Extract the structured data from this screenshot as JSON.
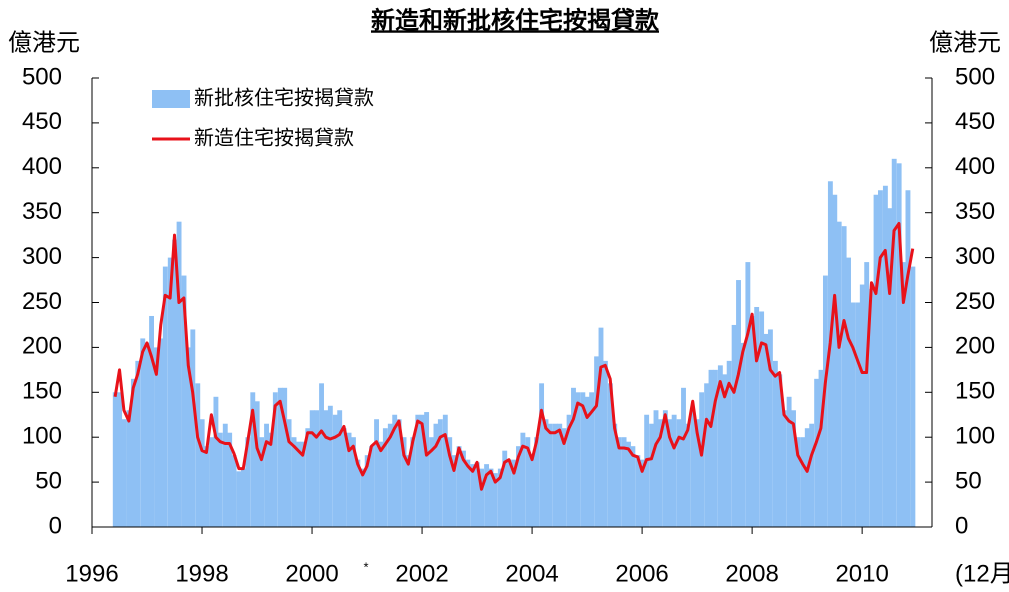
{
  "chart_data": {
    "type": "bar",
    "title": "新造和新批核住宅按揭貸款",
    "y_label": "億港元",
    "y2_label": "億港元",
    "x_unit_label": "(12月)",
    "annotation": "*",
    "xlim": [
      1996,
      2011.27
    ],
    "xticks": [
      1996,
      1998,
      2000,
      2002,
      2004,
      2006,
      2008,
      2010
    ],
    "ylim": [
      0,
      500
    ],
    "yticks": [
      0,
      50,
      100,
      150,
      200,
      250,
      300,
      350,
      400,
      450,
      500
    ],
    "y2lim": [
      0,
      500
    ],
    "y2ticks": [
      0,
      50,
      100,
      150,
      200,
      250,
      300,
      350,
      400,
      450,
      500
    ],
    "legend": "upper-left",
    "x": [
      1996.42,
      1996.5,
      1996.58,
      1996.67,
      1996.75,
      1996.83,
      1996.92,
      1997,
      1997.08,
      1997.17,
      1997.25,
      1997.33,
      1997.42,
      1997.5,
      1997.58,
      1997.67,
      1997.75,
      1997.83,
      1997.92,
      1998,
      1998.08,
      1998.17,
      1998.25,
      1998.33,
      1998.42,
      1998.5,
      1998.58,
      1998.67,
      1998.75,
      1998.83,
      1998.92,
      1999,
      1999.08,
      1999.17,
      1999.25,
      1999.33,
      1999.42,
      1999.5,
      1999.58,
      1999.67,
      1999.75,
      1999.83,
      1999.92,
      2000,
      2000.08,
      2000.17,
      2000.25,
      2000.33,
      2000.42,
      2000.5,
      2000.58,
      2000.67,
      2000.75,
      2000.83,
      2000.92,
      2001,
      2001.08,
      2001.17,
      2001.25,
      2001.33,
      2001.42,
      2001.5,
      2001.58,
      2001.67,
      2001.75,
      2001.83,
      2001.92,
      2002,
      2002.08,
      2002.17,
      2002.25,
      2002.33,
      2002.42,
      2002.5,
      2002.58,
      2002.67,
      2002.75,
      2002.83,
      2002.92,
      2003,
      2003.08,
      2003.17,
      2003.25,
      2003.33,
      2003.42,
      2003.5,
      2003.58,
      2003.67,
      2003.75,
      2003.83,
      2003.92,
      2004,
      2004.08,
      2004.17,
      2004.25,
      2004.33,
      2004.42,
      2004.5,
      2004.58,
      2004.67,
      2004.75,
      2004.83,
      2004.92,
      2005,
      2005.08,
      2005.17,
      2005.25,
      2005.33,
      2005.42,
      2005.5,
      2005.58,
      2005.67,
      2005.75,
      2005.83,
      2005.92,
      2006,
      2006.08,
      2006.17,
      2006.25,
      2006.33,
      2006.42,
      2006.5,
      2006.58,
      2006.67,
      2006.75,
      2006.83,
      2006.92,
      2007,
      2007.08,
      2007.17,
      2007.25,
      2007.33,
      2007.42,
      2007.5,
      2007.58,
      2007.67,
      2007.75,
      2007.83,
      2007.92,
      2008,
      2008.08,
      2008.17,
      2008.25,
      2008.33,
      2008.42,
      2008.5,
      2008.58,
      2008.67,
      2008.75,
      2008.83,
      2008.92,
      2009,
      2009.08,
      2009.17,
      2009.25,
      2009.33,
      2009.42,
      2009.5,
      2009.58,
      2009.67,
      2009.75,
      2009.83,
      2009.92,
      2010,
      2010.08,
      2010.17,
      2010.25,
      2010.33,
      2010.42,
      2010.5,
      2010.58,
      2010.67,
      2010.75,
      2010.83,
      2010.92
    ],
    "series": [
      {
        "name": "新批核住宅按揭貸款",
        "type": "bar",
        "color": "#8ec0f4",
        "values": [
          150,
          150,
          120,
          130,
          165,
          185,
          210,
          205,
          235,
          200,
          210,
          290,
          300,
          320,
          340,
          280,
          200,
          220,
          160,
          120,
          90,
          100,
          145,
          105,
          115,
          105,
          80,
          62,
          65,
          100,
          150,
          140,
          100,
          115,
          105,
          150,
          155,
          155,
          120,
          100,
          95,
          95,
          110,
          130,
          130,
          160,
          130,
          135,
          125,
          130,
          110,
          105,
          100,
          75,
          65,
          80,
          90,
          120,
          95,
          110,
          115,
          125,
          120,
          100,
          80,
          100,
          125,
          125,
          128,
          100,
          115,
          120,
          125,
          100,
          80,
          90,
          85,
          75,
          70,
          72,
          65,
          70,
          65,
          60,
          65,
          85,
          75,
          75,
          90,
          105,
          100,
          80,
          100,
          160,
          120,
          115,
          115,
          115,
          110,
          125,
          155,
          150,
          150,
          145,
          150,
          190,
          222,
          185,
          160,
          115,
          100,
          100,
          95,
          90,
          80,
          75,
          125,
          115,
          130,
          120,
          130,
          120,
          125,
          120,
          155,
          115,
          130,
          120,
          150,
          160,
          175,
          175,
          180,
          170,
          185,
          225,
          275,
          205,
          295,
          235,
          245,
          240,
          215,
          220,
          185,
          170,
          130,
          145,
          130,
          100,
          100,
          110,
          115,
          165,
          175,
          280,
          385,
          370,
          340,
          335,
          300,
          250,
          250,
          270,
          295,
          265,
          370,
          375,
          380,
          355,
          410,
          405,
          295,
          375,
          290
        ]
      },
      {
        "name": "新造住宅按揭貸款",
        "type": "line",
        "color": "#e8121a",
        "values": [
          145,
          175,
          130,
          118,
          155,
          170,
          195,
          205,
          190,
          170,
          225,
          258,
          255,
          325,
          250,
          255,
          180,
          150,
          100,
          85,
          83,
          125,
          100,
          95,
          93,
          93,
          82,
          65,
          65,
          95,
          130,
          88,
          75,
          95,
          92,
          135,
          140,
          118,
          95,
          90,
          85,
          80,
          105,
          105,
          100,
          107,
          100,
          98,
          100,
          103,
          112,
          85,
          90,
          70,
          58,
          68,
          90,
          95,
          85,
          92,
          100,
          110,
          118,
          80,
          70,
          95,
          118,
          115,
          80,
          85,
          90,
          100,
          103,
          80,
          63,
          88,
          75,
          68,
          62,
          72,
          42,
          58,
          62,
          50,
          55,
          72,
          75,
          60,
          78,
          90,
          88,
          75,
          95,
          130,
          110,
          105,
          105,
          108,
          93,
          110,
          120,
          138,
          135,
          122,
          128,
          135,
          178,
          180,
          165,
          110,
          88,
          88,
          87,
          80,
          78,
          62,
          75,
          76,
          92,
          100,
          125,
          100,
          88,
          100,
          98,
          108,
          140,
          105,
          80,
          120,
          112,
          140,
          162,
          145,
          160,
          150,
          170,
          195,
          215,
          237,
          185,
          205,
          203,
          175,
          168,
          172,
          125,
          118,
          115,
          80,
          70,
          62,
          80,
          95,
          110,
          160,
          205,
          258,
          200,
          230,
          210,
          200,
          185,
          172,
          172,
          272,
          260,
          300,
          308,
          260,
          330,
          338,
          250,
          280,
          310
        ]
      }
    ]
  }
}
